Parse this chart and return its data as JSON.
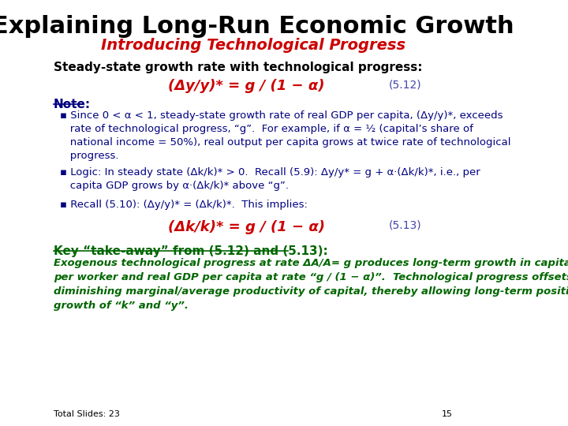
{
  "title": "Explaining Long-Run Economic Growth",
  "subtitle": "Introducing Technological Progress",
  "title_color": "#000000",
  "subtitle_color": "#CC0000",
  "bg_color": "#FFFFFF",
  "slide_number": "15",
  "total_slides": "Total Slides: 23",
  "steady_state_label": "Steady-state growth rate with technological progress:",
  "eq1": "(Δy/y)* = g / (1 − α)",
  "eq1_num": "(5.12)",
  "eq1_color": "#CC0000",
  "eq1_num_color": "#4444AA",
  "note_label": "Note:",
  "note_color": "#000080",
  "bullet1_text": "▪ Since 0 < α < 1, steady-state growth rate of real GDP per capita, (Δy/y)*, exceeds\n   rate of technological progress, “g”.  For example, if α = ½ (capital’s share of\n   national income = 50%), real output per capita grows at twice rate of technological\n   progress.",
  "bullet2_text": "▪ Logic: In steady state (Δk/k)* > 0.  Recall (5.9): Δy/y* = g + α·(Δk/k)*, i.e., per\n   capita GDP grows by α·(Δk/k)* above “g”.",
  "bullet3_text": "▪ Recall (5.10): (Δy/y)* = (Δk/k)*.  This implies:",
  "eq2": "(Δk/k)* = g / (1 − α)",
  "eq2_num": "(5.13)",
  "eq2_color": "#CC0000",
  "eq2_num_color": "#4444AA",
  "key_label": "Key “take-away” from (5.12) and (5.13):",
  "key_color": "#006600",
  "key_italic": "Exogenous technological progress at rate ΔA/A= g produces long-term growth in capital\nper worker and real GDP per capita at rate “g / (1 − α)”.  Technological progress offsets\ndiminishing marginal/average productivity of capital, thereby allowing long-term positive\ngrowth of “k” and “y”.",
  "body_color": "#000080",
  "body_fontsize": 9.5,
  "title_fontsize": 22,
  "subtitle_fontsize": 14,
  "eq_fontsize": 13,
  "note_fontsize": 11,
  "key_fontsize": 11,
  "key_italic_fontsize": 9.5
}
